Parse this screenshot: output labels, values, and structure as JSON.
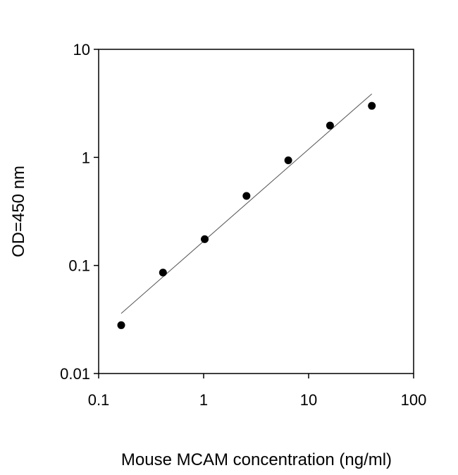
{
  "chart_data": {
    "type": "scatter",
    "x_label": "Mouse MCAM concentration (ng/ml)",
    "y_label": "OD=450 nm",
    "x_scale": "log",
    "y_scale": "log",
    "xlim": [
      0.1,
      100
    ],
    "ylim": [
      0.01,
      10
    ],
    "xticks": [
      0.1,
      1,
      10,
      100
    ],
    "yticks": [
      0.01,
      0.1,
      1,
      10
    ],
    "color": "#000000",
    "x": [
      0.164,
      0.41,
      1.024,
      2.56,
      6.4,
      16,
      40
    ],
    "values": [
      0.028,
      0.086,
      0.175,
      0.44,
      0.94,
      1.97,
      3.0
    ],
    "fit_line": {
      "color": "#555555",
      "x": [
        0.164,
        40
      ],
      "values": [
        0.036,
        3.87
      ]
    }
  }
}
